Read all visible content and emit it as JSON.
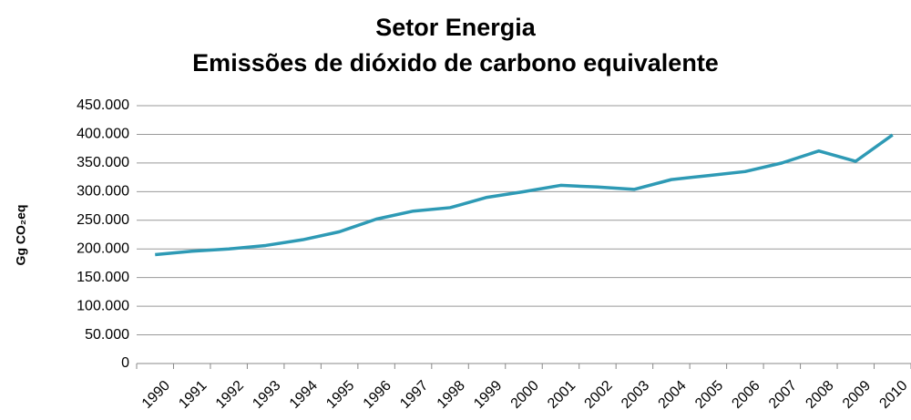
{
  "chart_data": {
    "type": "line",
    "title": "Setor Energia",
    "subtitle": "Emissões de dióxido de carbono equivalente",
    "ylabel": "Gg CO₂eq",
    "categories": [
      "1990",
      "1991",
      "1992",
      "1993",
      "1994",
      "1995",
      "1996",
      "1997",
      "1998",
      "1999",
      "2000",
      "2001",
      "2002",
      "2003",
      "2004",
      "2005",
      "2006",
      "2007",
      "2008",
      "2009",
      "2010"
    ],
    "series": [
      {
        "name": "Setor Energia",
        "color": "#2e9ab5",
        "values": [
          190000,
          196000,
          200000,
          206000,
          216000,
          230000,
          252000,
          266000,
          272000,
          290000,
          300000,
          311000,
          308000,
          304000,
          321000,
          328000,
          335000,
          350000,
          371000,
          353000,
          399000
        ]
      }
    ],
    "ylim": [
      0,
      450000
    ],
    "yticks": [
      0,
      {
        "value": 50000,
        "label": "50.000"
      },
      {
        "value": 100000,
        "label": "100.000"
      },
      {
        "value": 150000,
        "label": "150.000"
      },
      {
        "value": 200000,
        "label": "200.000"
      },
      {
        "value": 250000,
        "label": "250.000"
      },
      {
        "value": 300000,
        "label": "300.000"
      },
      {
        "value": 350000,
        "label": "350.000"
      },
      {
        "value": 400000,
        "label": "400.000"
      },
      {
        "value": 450000,
        "label": "450.000"
      }
    ],
    "grid": true
  }
}
